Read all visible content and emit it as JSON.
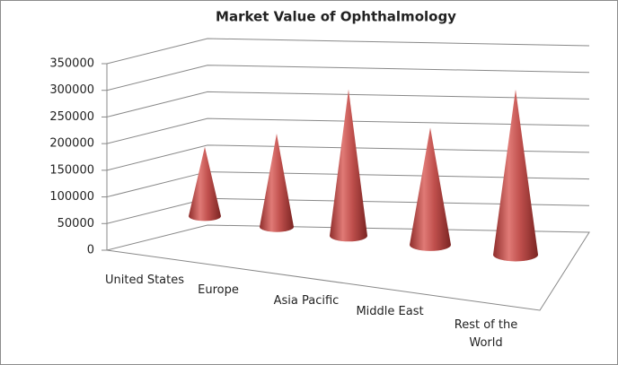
{
  "chart_data": {
    "type": "cone3d",
    "title": "Market Value of Ophthalmology",
    "categories": [
      "United States",
      "Europe",
      "Asia Pacific",
      "Middle East",
      "Rest of the World"
    ],
    "values": [
      130000,
      175000,
      275000,
      220000,
      310000
    ],
    "color": "#c0504d",
    "ylim": [
      0,
      350000
    ],
    "yticks": [
      0,
      50000,
      100000,
      150000,
      200000,
      250000,
      300000,
      350000
    ],
    "grid": true
  }
}
